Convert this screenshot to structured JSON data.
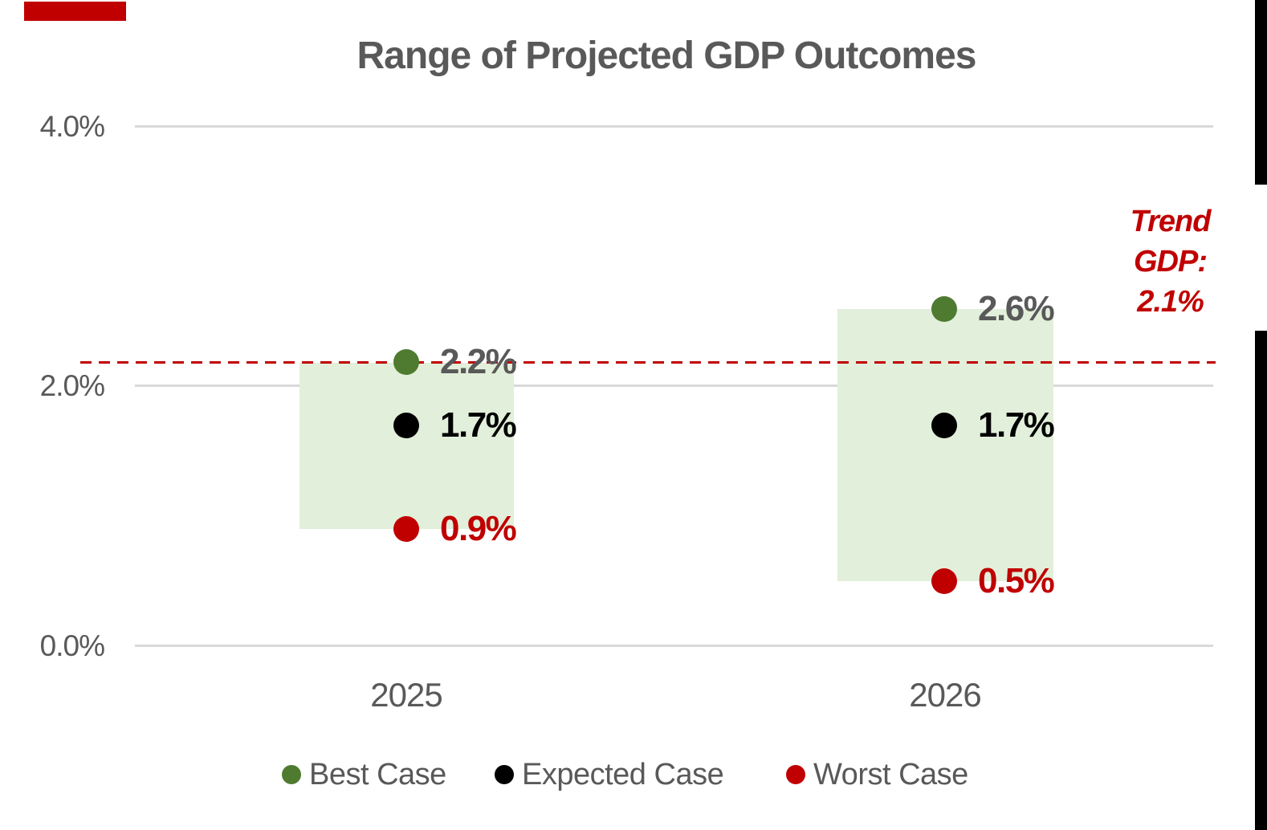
{
  "title": "Range of Projected GDP Outcomes",
  "y_axis": {
    "ticks": [
      {
        "label": "4.0%"
      },
      {
        "label": "2.0%"
      },
      {
        "label": "0.0%"
      }
    ]
  },
  "x_axis": {
    "categories": [
      {
        "label": "2025"
      },
      {
        "label": "2026"
      }
    ]
  },
  "points": {
    "best_2025": {
      "label": "2.2%"
    },
    "expected_2025": {
      "label": "1.7%"
    },
    "worst_2025": {
      "label": "0.9%"
    },
    "best_2026": {
      "label": "2.6%"
    },
    "expected_2026": {
      "label": "1.7%"
    },
    "worst_2026": {
      "label": "0.5%"
    }
  },
  "legend": {
    "items": [
      {
        "label": "Best Case"
      },
      {
        "label": "Expected Case"
      },
      {
        "label": "Worst Case"
      }
    ]
  },
  "trend": {
    "line1": "Trend",
    "line2": "GDP:",
    "line3": "2.1%"
  },
  "colors": {
    "accent_red": "#C00000",
    "best_green": "#4E7B30",
    "expected_black": "#000000",
    "range_fill": "#E2EFDA",
    "gridline": "#D9D9D9",
    "text_gray": "#595959"
  },
  "chart_data": {
    "type": "scatter",
    "title": "Range of Projected GDP Outcomes",
    "categories": [
      "2025",
      "2026"
    ],
    "series": [
      {
        "name": "Best Case",
        "values": [
          2.2,
          2.6
        ],
        "labels": [
          "2.2%",
          "2.6%"
        ],
        "color": "#4E7B30"
      },
      {
        "name": "Expected Case",
        "values": [
          1.7,
          1.7
        ],
        "labels": [
          "1.7%",
          "1.7%"
        ],
        "color": "#000000"
      },
      {
        "name": "Worst Case",
        "values": [
          0.9,
          0.5
        ],
        "labels": [
          "0.9%",
          "0.5%"
        ],
        "color": "#C00000"
      }
    ],
    "range_bands": [
      {
        "category": "2025",
        "low": 0.9,
        "high": 2.2,
        "fill": "#E2EFDA"
      },
      {
        "category": "2026",
        "low": 0.5,
        "high": 2.6,
        "fill": "#E2EFDA"
      }
    ],
    "trend_line": {
      "label": "Trend GDP: 2.1%",
      "value": 2.1,
      "style": "dashed",
      "color": "#C00000"
    },
    "xlabel": "",
    "ylabel": "",
    "ylim": [
      0,
      4
    ],
    "y_ticks": [
      "0.0%",
      "2.0%",
      "4.0%"
    ],
    "grid": true,
    "legend_position": "bottom"
  }
}
